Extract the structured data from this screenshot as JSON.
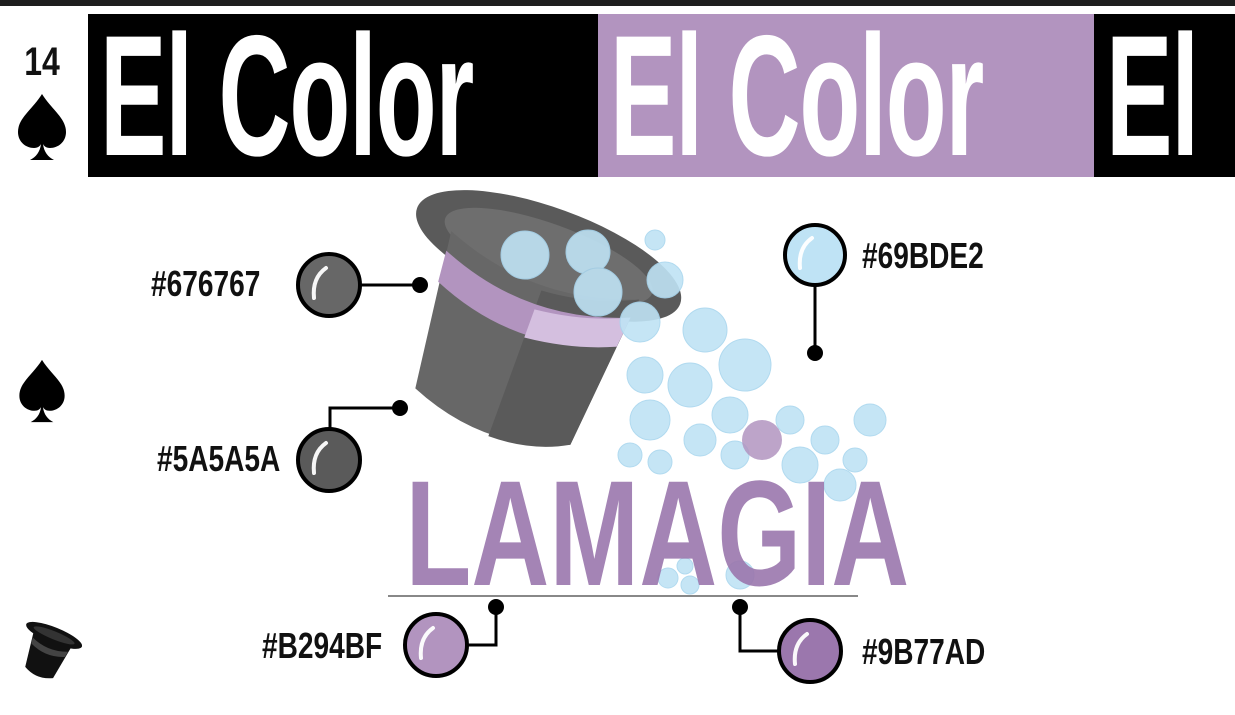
{
  "header": {
    "title_repeats": [
      "El Color",
      "El Color",
      "El"
    ]
  },
  "card": {
    "number": "14",
    "suit_icon": "spade-icon",
    "footer_icon": "top-hat-icon"
  },
  "logo": {
    "text": "LAMAGIA",
    "icon": "magic-hat-with-bubbles"
  },
  "swatches": [
    {
      "label": "#676767",
      "color": "#676767"
    },
    {
      "label": "#5A5A5A",
      "color": "#5A5A5A"
    },
    {
      "label": "#69BDE2",
      "color": "#69BDE2"
    },
    {
      "label": "#B294BF",
      "color": "#B294BF"
    },
    {
      "label": "#9B77AD",
      "color": "#9B77AD"
    }
  ],
  "colors": {
    "banner_dark": "#000000",
    "banner_accent": "#b294bf",
    "ink": "#111111"
  }
}
